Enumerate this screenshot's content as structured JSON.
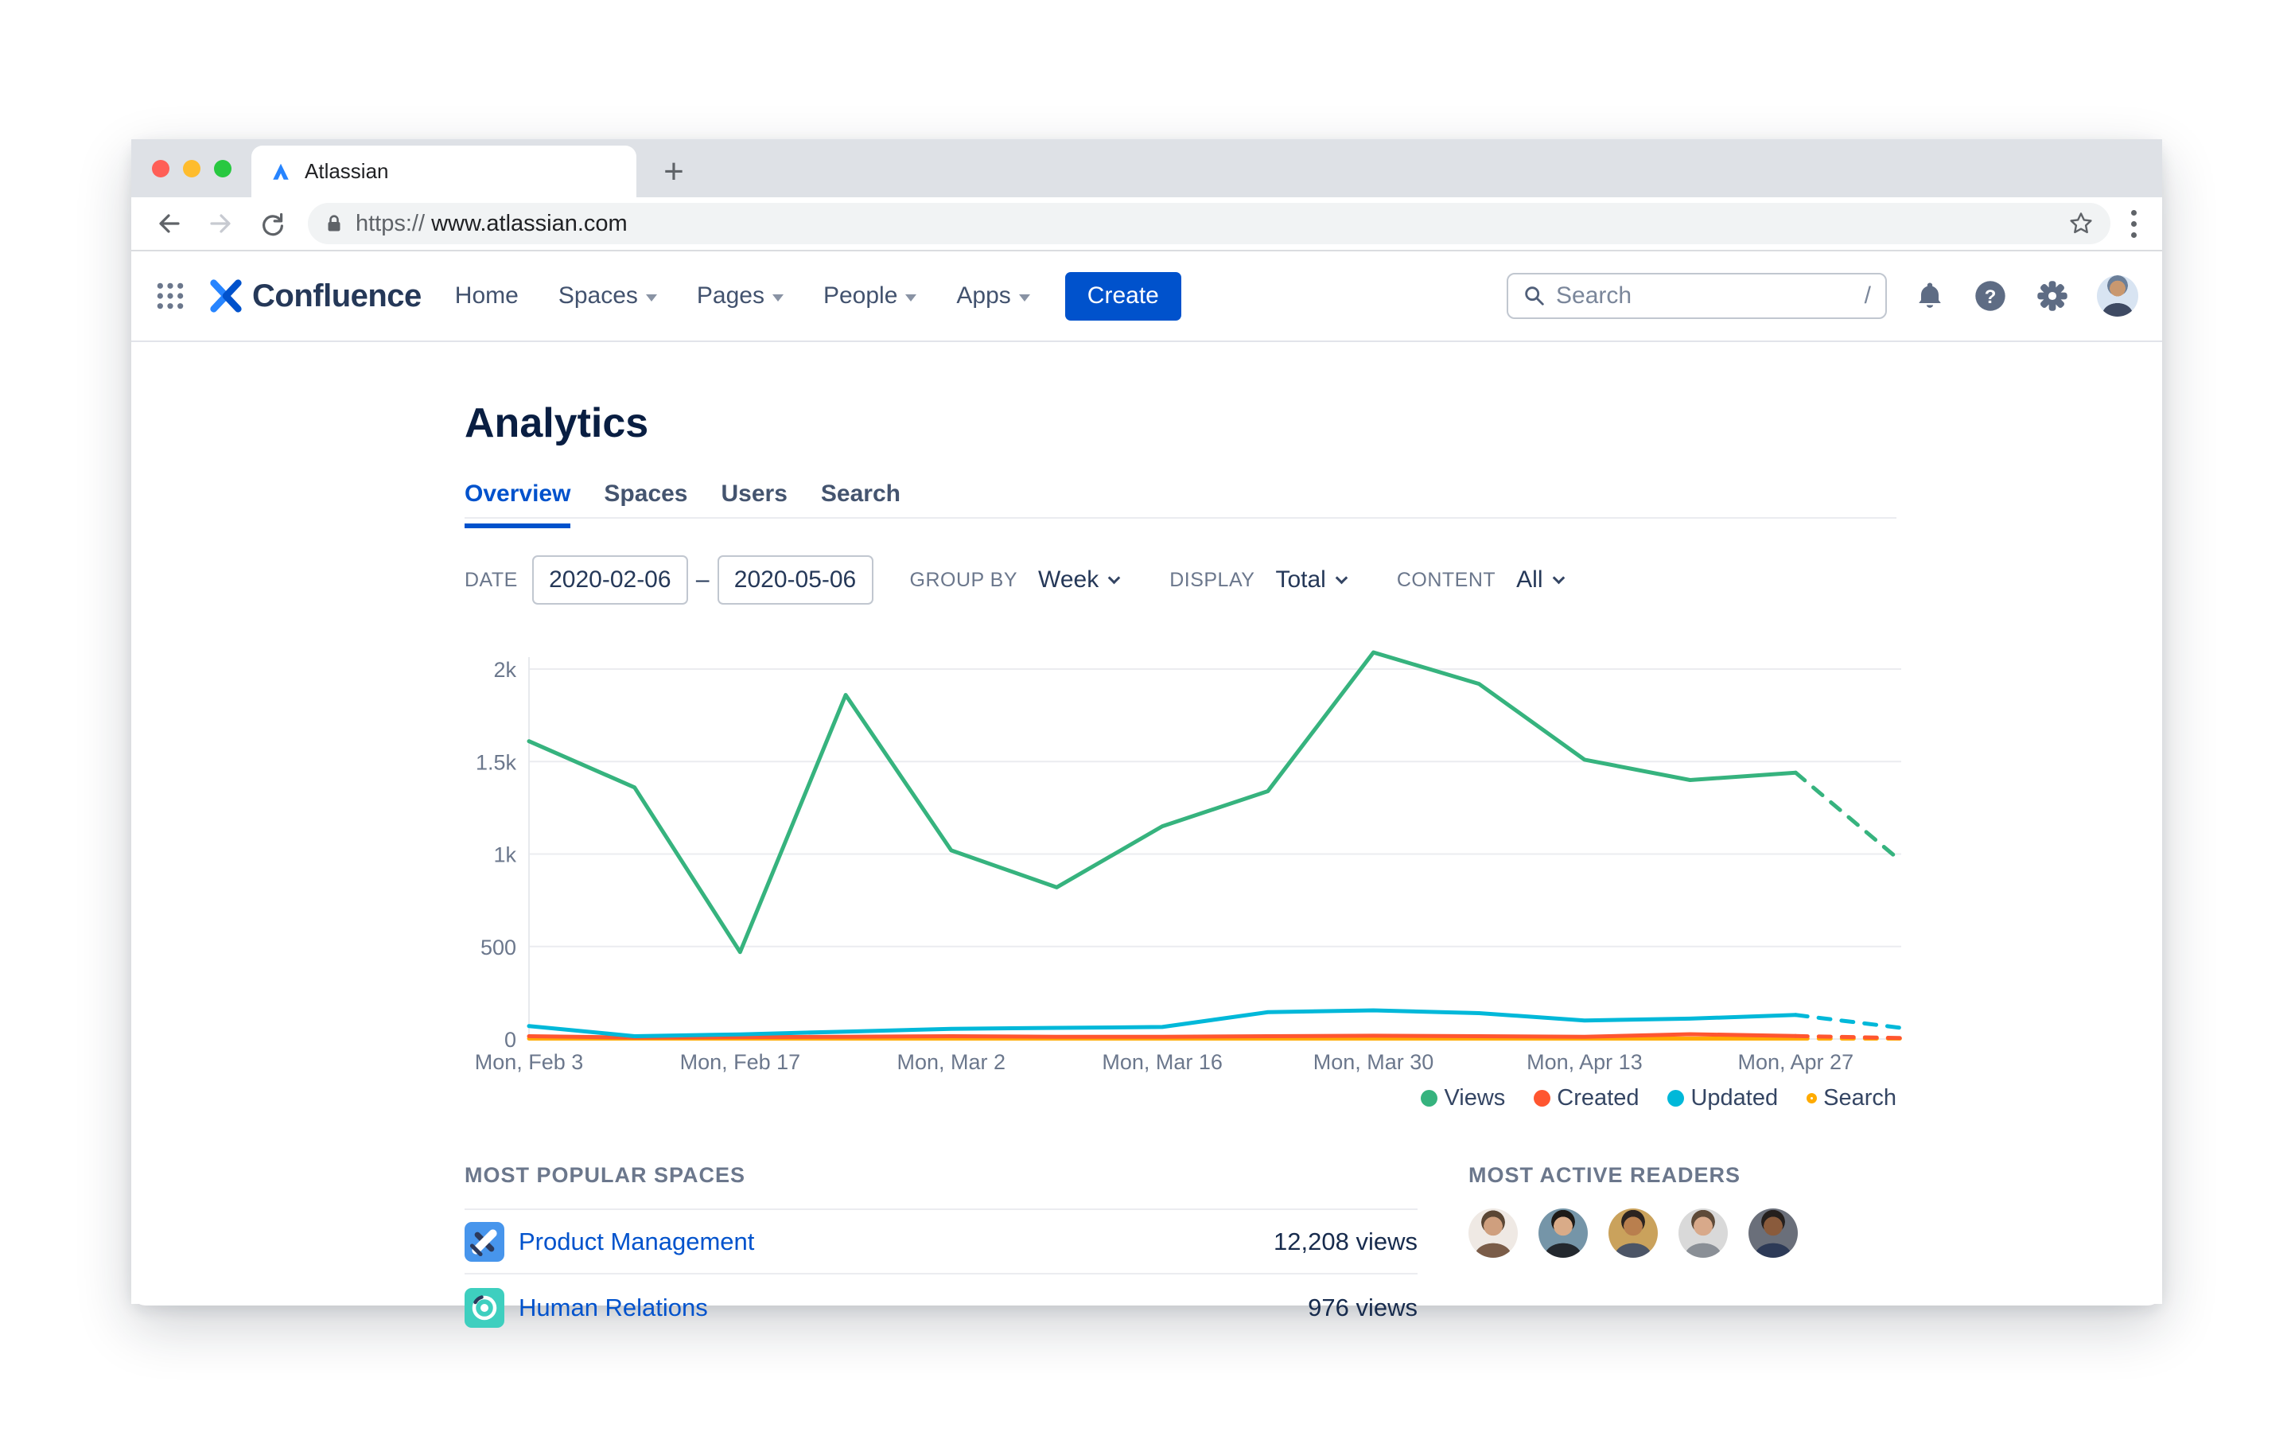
{
  "browser": {
    "tab_title": "Atlassian",
    "new_tab_label": "+",
    "url_scheme": "https:// ",
    "url_host": "www.atlassian.com"
  },
  "nav": {
    "brand": "Confluence",
    "items": [
      {
        "label": "Home",
        "chevron": false
      },
      {
        "label": "Spaces",
        "chevron": true
      },
      {
        "label": "Pages",
        "chevron": true
      },
      {
        "label": "People",
        "chevron": true
      },
      {
        "label": "Apps",
        "chevron": true
      }
    ],
    "create_label": "Create",
    "search_placeholder": "Search",
    "search_shortcut": "/",
    "help_glyph": "?",
    "accent_color": "#0052CC"
  },
  "page": {
    "title": "Analytics",
    "tabs": [
      {
        "label": "Overview",
        "active": true
      },
      {
        "label": "Spaces",
        "active": false
      },
      {
        "label": "Users",
        "active": false
      },
      {
        "label": "Search",
        "active": false
      }
    ],
    "filters": {
      "date_label": "DATE",
      "date_from": "2020-02-06",
      "date_separator": "–",
      "date_to": "2020-05-06",
      "group_by_label": "GROUP BY",
      "group_by_value": "Week",
      "display_label": "DISPLAY",
      "display_value": "Total",
      "content_label": "CONTENT",
      "content_value": "All"
    },
    "popular": {
      "heading": "MOST POPULAR SPACES",
      "rows": [
        {
          "name": "Product Management",
          "views": "12,208 views",
          "icon_color": "#4795EC",
          "icon": "plane-icon"
        },
        {
          "name": "Human Relations",
          "views": "976 views",
          "icon_color": "#3ECFBF",
          "icon": "rings-icon"
        }
      ]
    },
    "readers": {
      "heading": "MOST ACTIVE READERS",
      "count": 5
    }
  },
  "chart_data": {
    "type": "line",
    "title": "",
    "xlabel": "",
    "ylabel": "",
    "ylim": [
      0,
      2000
    ],
    "grid": true,
    "yticks": [
      0,
      500,
      1000,
      1500,
      2000
    ],
    "ytick_labels": [
      "0",
      "500",
      "1k",
      "1.5k",
      "2k"
    ],
    "x": [
      "Feb 3",
      "Feb 10",
      "Feb 17",
      "Feb 24",
      "Mar 2",
      "Mar 9",
      "Mar 16",
      "Mar 23",
      "Mar 30",
      "Apr 6",
      "Apr 13",
      "Apr 20",
      "Apr 27",
      "May 4"
    ],
    "xtick_indices": [
      0,
      2,
      4,
      6,
      8,
      10,
      12
    ],
    "xtick_labels": [
      "Mon, Feb 3",
      "Mon, Feb 17",
      "Mon, Mar 2",
      "Mon, Mar 16",
      "Mon, Mar 30",
      "Mon, Apr 13",
      "Mon, Apr 27"
    ],
    "dashed_from_index": 12,
    "series": [
      {
        "name": "Views",
        "color": "#36B37E",
        "values": [
          1610,
          1360,
          470,
          1860,
          1020,
          820,
          1150,
          1340,
          2090,
          1920,
          1510,
          1400,
          1440,
          960
        ]
      },
      {
        "name": "Created",
        "color": "#FF5630",
        "values": [
          15,
          8,
          10,
          12,
          15,
          12,
          12,
          15,
          18,
          15,
          12,
          26,
          16,
          5
        ]
      },
      {
        "name": "Updated",
        "color": "#00B8D9",
        "values": [
          70,
          15,
          25,
          40,
          55,
          60,
          65,
          145,
          155,
          140,
          100,
          110,
          130,
          60
        ]
      },
      {
        "name": "Search",
        "color": "#FFAB00",
        "values": [
          2,
          2,
          2,
          2,
          2,
          2,
          2,
          2,
          2,
          2,
          2,
          2,
          2,
          2
        ]
      }
    ],
    "legend": [
      {
        "label": "Views",
        "color": "#36B37E",
        "filled": true
      },
      {
        "label": "Created",
        "color": "#FF5630",
        "filled": true
      },
      {
        "label": "Updated",
        "color": "#00B8D9",
        "filled": true
      },
      {
        "label": "Search",
        "color": "#FFAB00",
        "filled": false
      }
    ],
    "legend_position": "bottom-right"
  }
}
